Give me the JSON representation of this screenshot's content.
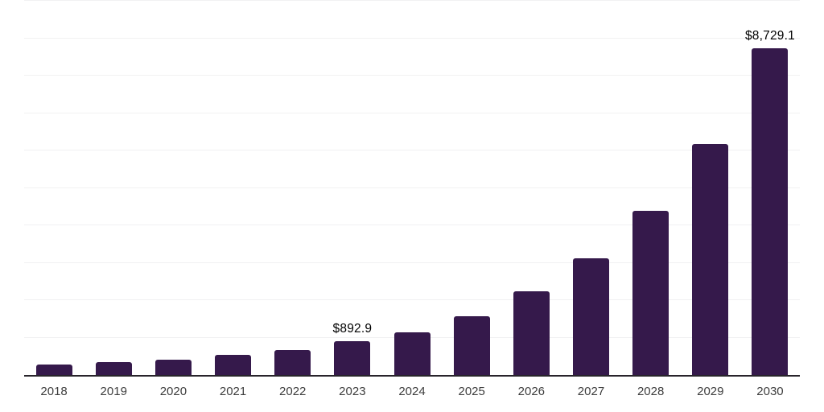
{
  "chart_data": {
    "type": "bar",
    "categories": [
      "2018",
      "2019",
      "2020",
      "2021",
      "2022",
      "2023",
      "2024",
      "2025",
      "2026",
      "2027",
      "2028",
      "2029",
      "2030"
    ],
    "values": [
      285,
      345,
      415,
      535,
      670,
      892.9,
      1140,
      1580,
      2240,
      3120,
      4380,
      6180,
      8729.1
    ],
    "annotations": [
      {
        "category": "2023",
        "text": "$892.9"
      },
      {
        "category": "2030",
        "text": "$8,729.1"
      }
    ],
    "ylim": [
      0,
      10000
    ],
    "gridline_step": 1000,
    "grid": true,
    "legend": false,
    "bar_color": "#35194B",
    "gridline_color": "#F1F1F2",
    "axis_line_color": "#28242B",
    "tick_label_color": "#3D3D3D",
    "value_label_color": "#000000"
  }
}
